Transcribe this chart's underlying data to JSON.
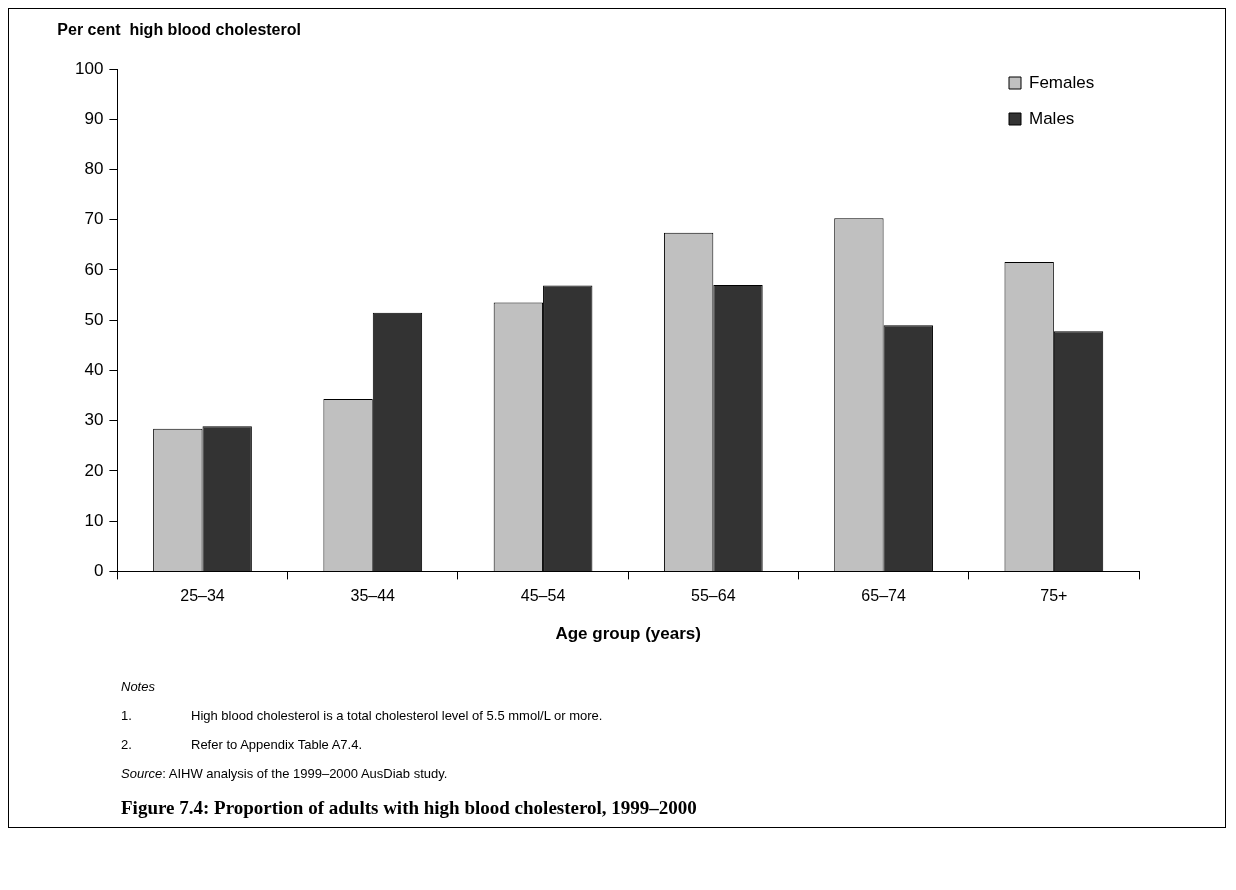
{
  "chart_data": {
    "type": "bar",
    "title": "Figure 7.4: Proportion of adults with high blood cholesterol, 1999–2000",
    "ylabel": "Per cent  high blood cholesterol",
    "xlabel": "Age group (years)",
    "categories": [
      "25–34",
      "35–44",
      "45–54",
      "55–64",
      "65–74",
      "75+"
    ],
    "series": [
      {
        "name": "Females",
        "color": "#c0c0c0",
        "values": [
          28.4,
          34.3,
          53.5,
          67.4,
          70.3,
          61.6
        ]
      },
      {
        "name": "Males",
        "color": "#333333",
        "values": [
          28.9,
          51.5,
          56.9,
          57.0,
          49.0,
          47.8
        ]
      }
    ],
    "ylim": [
      0,
      100
    ],
    "yticks": [
      0,
      10,
      20,
      30,
      40,
      50,
      60,
      70,
      80,
      90,
      100
    ],
    "legend": "top right",
    "annotations": [
      "Notes",
      "1. High blood cholesterol is a total cholesterol level of 5.5 mmol/L or more.",
      "2. Refer to Appendix Table A7.4.",
      "Source: AIHW analysis of the 1999–2000 AusDiab study."
    ]
  }
}
